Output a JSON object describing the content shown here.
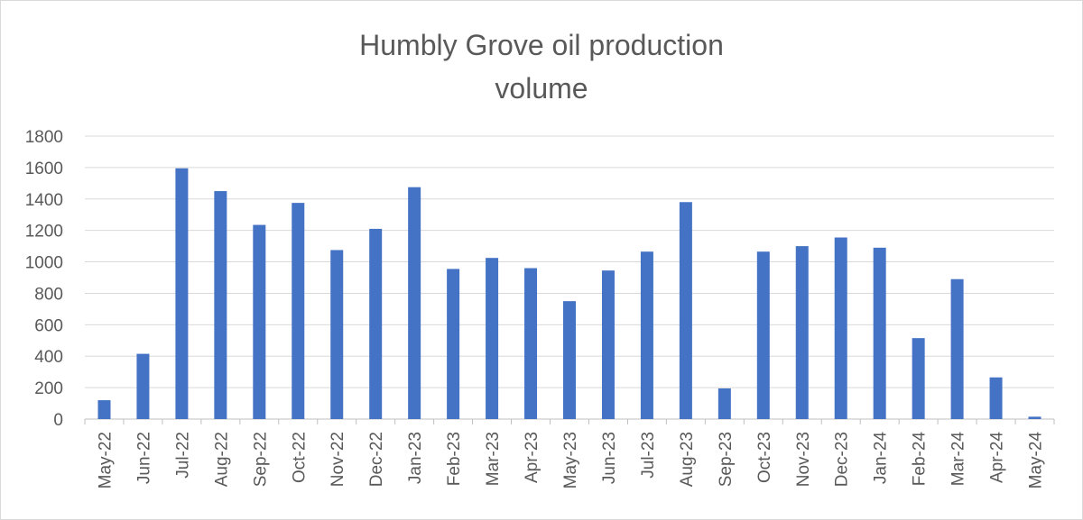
{
  "chart_data": {
    "type": "bar",
    "title_line1": "Humbly Grove oil production",
    "title_line2": "volume",
    "xlabel": "",
    "ylabel": "",
    "ylim": [
      0,
      1800
    ],
    "yticks": [
      0,
      200,
      400,
      600,
      800,
      1000,
      1200,
      1400,
      1600,
      1800
    ],
    "grid": true,
    "legend": "none",
    "bar_color": "#4472c4",
    "categories": [
      "May-22",
      "Jun-22",
      "Jul-22",
      "Aug-22",
      "Sep-22",
      "Oct-22",
      "Nov-22",
      "Dec-22",
      "Jan-23",
      "Feb-23",
      "Mar-23",
      "Apr-23",
      "May-23",
      "Jun-23",
      "Jul-23",
      "Aug-23",
      "Sep-23",
      "Oct-23",
      "Nov-23",
      "Dec-23",
      "Jan-24",
      "Feb-24",
      "Mar-24",
      "Apr-24",
      "May-24"
    ],
    "values": [
      120,
      415,
      1595,
      1450,
      1235,
      1375,
      1075,
      1210,
      1475,
      955,
      1025,
      960,
      750,
      945,
      1065,
      1380,
      195,
      1065,
      1100,
      1155,
      1090,
      515,
      890,
      265,
      15
    ]
  }
}
